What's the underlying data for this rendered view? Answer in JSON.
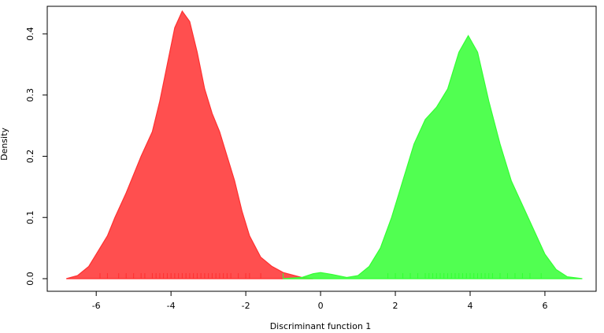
{
  "chart_data": {
    "type": "density",
    "xlabel": "Discriminant function 1",
    "ylabel": "Density",
    "xlim": [
      -7.31,
      7.37
    ],
    "ylim": [
      -0.0206,
      0.445
    ],
    "xticks": [
      -6,
      -4,
      -2,
      0,
      2,
      4,
      6
    ],
    "yticks": [
      {
        "value": 0,
        "label": "0.0"
      },
      {
        "value": 0.1,
        "label": "0.1"
      },
      {
        "value": 0.2,
        "label": "0.2"
      },
      {
        "value": 0.3,
        "label": "0.3"
      },
      {
        "value": 0.4,
        "label": "0.4"
      }
    ],
    "series": [
      {
        "color": "#ff3030",
        "x": [
          -6.8,
          -6.5,
          -6.2,
          -6,
          -5.7,
          -5.5,
          -5.2,
          -5,
          -4.8,
          -4.5,
          -4.3,
          -4.1,
          -3.9,
          -3.7,
          -3.5,
          -3.3,
          -3.1,
          -2.9,
          -2.7,
          -2.5,
          -2.3,
          -2.1,
          -1.9,
          -1.6,
          -1.3,
          -1,
          -0.5,
          -0.2
        ],
        "values": [
          0,
          0.005,
          0.02,
          0.04,
          0.07,
          0.1,
          0.14,
          0.17,
          0.2,
          0.24,
          0.29,
          0.35,
          0.41,
          0.437,
          0.42,
          0.37,
          0.31,
          0.27,
          0.24,
          0.2,
          0.16,
          0.11,
          0.07,
          0.035,
          0.02,
          0.01,
          0.002,
          0
        ],
        "rug": [
          -5.9,
          -5.7,
          -5.4,
          -5.2,
          -5.0,
          -4.8,
          -4.7,
          -4.5,
          -4.4,
          -4.3,
          -4.2,
          -4.1,
          -4.0,
          -3.9,
          -3.8,
          -3.7,
          -3.6,
          -3.5,
          -3.4,
          -3.3,
          -3.2,
          -3.1,
          -3.0,
          -2.9,
          -2.8,
          -2.7,
          -2.6,
          -2.5,
          -2.4,
          -2.2,
          -2.0,
          -1.9,
          -1.6
        ]
      },
      {
        "color": "#33ff33",
        "x": [
          -1,
          -0.5,
          -0.2,
          0,
          0.3,
          0.7,
          1,
          1.3,
          1.6,
          1.9,
          2.2,
          2.5,
          2.8,
          3.1,
          3.4,
          3.7,
          3.95,
          4.2,
          4.5,
          4.8,
          5.1,
          5.4,
          5.7,
          6,
          6.3,
          6.6,
          7
        ],
        "values": [
          0,
          0.002,
          0.008,
          0.01,
          0.007,
          0.002,
          0.005,
          0.02,
          0.05,
          0.1,
          0.16,
          0.22,
          0.26,
          0.28,
          0.31,
          0.37,
          0.397,
          0.37,
          0.29,
          0.22,
          0.16,
          0.12,
          0.08,
          0.04,
          0.015,
          0.003,
          0
        ],
        "rug": [
          -1.0,
          1.8,
          2.0,
          2.2,
          2.4,
          2.6,
          2.8,
          2.9,
          3.0,
          3.1,
          3.2,
          3.3,
          3.4,
          3.5,
          3.6,
          3.7,
          3.8,
          3.9,
          4.0,
          4.1,
          4.2,
          4.3,
          4.4,
          4.5,
          4.6,
          4.8,
          5.0,
          5.2,
          5.4,
          5.6,
          5.9
        ]
      }
    ]
  }
}
